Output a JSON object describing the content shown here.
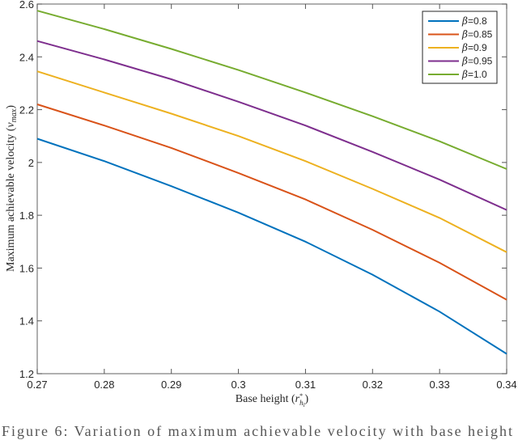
{
  "chart_data": {
    "type": "line",
    "title": "",
    "xlabel": "Base height (r_{h_l}^*)",
    "ylabel": "Maximum achievable velocity (v_max)",
    "x": [
      0.27,
      0.28,
      0.29,
      0.3,
      0.31,
      0.32,
      0.33,
      0.34
    ],
    "xlim": [
      0.27,
      0.34
    ],
    "ylim": [
      1.2,
      2.6
    ],
    "xticks": [
      "0.27",
      "0.28",
      "0.29",
      "0.3",
      "0.31",
      "0.32",
      "0.33",
      "0.34"
    ],
    "yticks": [
      "1.2",
      "1.4",
      "1.6",
      "1.8",
      "2",
      "2.2",
      "2.4",
      "2.6"
    ],
    "grid": false,
    "legend_position": "top-right",
    "series": [
      {
        "name": "β=0.8",
        "color": "#0072BD",
        "values": [
          2.09,
          2.005,
          1.91,
          1.81,
          1.7,
          1.575,
          1.435,
          1.275
        ]
      },
      {
        "name": "β=0.85",
        "color": "#D95319",
        "values": [
          2.22,
          2.14,
          2.055,
          1.96,
          1.86,
          1.745,
          1.62,
          1.48
        ]
      },
      {
        "name": "β=0.9",
        "color": "#EDB120",
        "values": [
          2.345,
          2.265,
          2.185,
          2.1,
          2.005,
          1.9,
          1.79,
          1.66
        ]
      },
      {
        "name": "β=0.95",
        "color": "#7E2F8E",
        "values": [
          2.46,
          2.39,
          2.315,
          2.23,
          2.14,
          2.04,
          1.935,
          1.82
        ]
      },
      {
        "name": "β=1.0",
        "color": "#77AC30",
        "values": [
          2.575,
          2.505,
          2.43,
          2.35,
          2.265,
          2.175,
          2.08,
          1.975
        ]
      }
    ]
  },
  "labels": {
    "xlabel_main": "Base height (",
    "xlabel_var": "r",
    "xlabel_sub": "h",
    "xlabel_subsub": "l",
    "xlabel_sup": "*",
    "xlabel_close": ")",
    "ylabel_main": "Maximum achievable velocity (",
    "ylabel_var": "v",
    "ylabel_sub": "max",
    "ylabel_close": ")"
  },
  "caption": "Figure 6: Variation of maximum achievable velocity with base height"
}
